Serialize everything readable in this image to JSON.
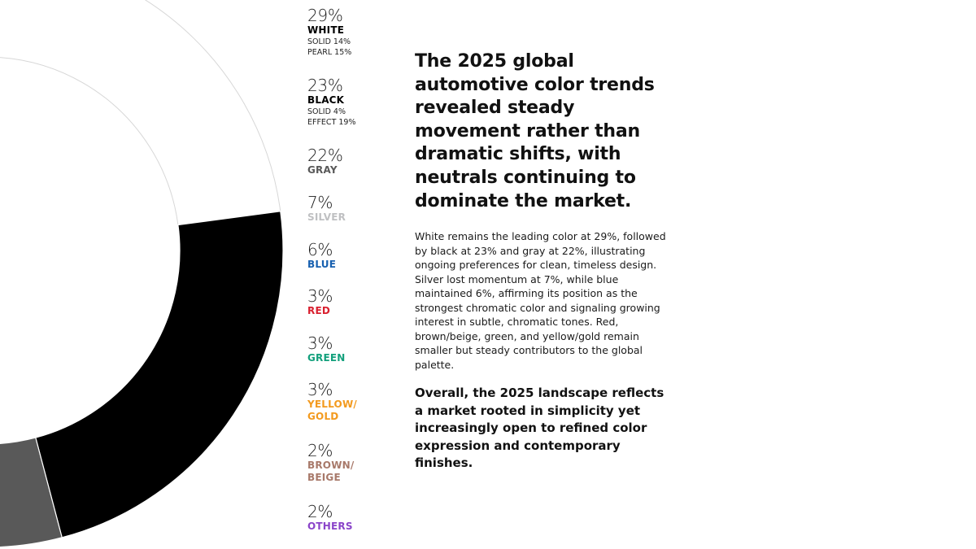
{
  "chart_data": {
    "type": "pie",
    "variant": "donut",
    "categories": [
      "White",
      "Black",
      "Gray",
      "Silver",
      "Blue",
      "Red",
      "Green",
      "Yellow/Gold",
      "Brown/Beige",
      "Others"
    ],
    "values": [
      29,
      23,
      22,
      7,
      6,
      3,
      3,
      3,
      2,
      2
    ],
    "colors": [
      "#ffffff",
      "#000000",
      "#595959",
      "#c8c9cb",
      "#0d5aa7",
      "#e0262f",
      "#14a37f",
      "#f6931d",
      "#a87b64",
      "#8742c8"
    ],
    "unit": "%"
  },
  "legend": [
    {
      "pct": "29%",
      "name": "WHITE",
      "color": "#000000",
      "subs": [
        "SOLID 14%",
        "PEARL 15%"
      ]
    },
    {
      "pct": "23%",
      "name": "BLACK",
      "color": "#000000",
      "subs": [
        "SOLID 4%",
        "EFFECT 19%"
      ]
    },
    {
      "pct": "22%",
      "name": "GRAY",
      "color": "#595959",
      "subs": []
    },
    {
      "pct": "7%",
      "name": "SILVER",
      "color": "#bfc0c2",
      "subs": []
    },
    {
      "pct": "6%",
      "name": "BLUE",
      "color": "#1760b0",
      "subs": []
    },
    {
      "pct": "3%",
      "name": "RED",
      "color": "#d9202f",
      "subs": []
    },
    {
      "pct": "3%",
      "name": "GREEN",
      "color": "#13a07c",
      "subs": []
    },
    {
      "pct": "3%",
      "name": "YELLOW/ GOLD",
      "color": "#f39a1e",
      "subs": []
    },
    {
      "pct": "2%",
      "name": "BROWN/ BEIGE",
      "color": "#a8796a",
      "subs": []
    },
    {
      "pct": "2%",
      "name": "OTHERS",
      "color": "#8a44c9",
      "subs": []
    }
  ],
  "headline": "The 2025 global automotive color trends revealed steady movement rather than dramatic shifts, with neutrals continuing to dominate the market.",
  "body": "White remains the leading color at 29%, followed by black at 23% and gray at 22%, illustrating ongoing preferences for clean, timeless design. Silver lost momentum at 7%, while blue maintained 6%, affirming its position as the strongest chromatic color and signaling growing interest in subtle, chromatic tones. Red, brown/beige, green, and yellow/gold remain smaller but steady contributors to the global palette.",
  "conclusion": "Overall, the 2025 landscape reflects a market rooted in simplicity yet increasingly open to refined color expression and contemporary finishes."
}
